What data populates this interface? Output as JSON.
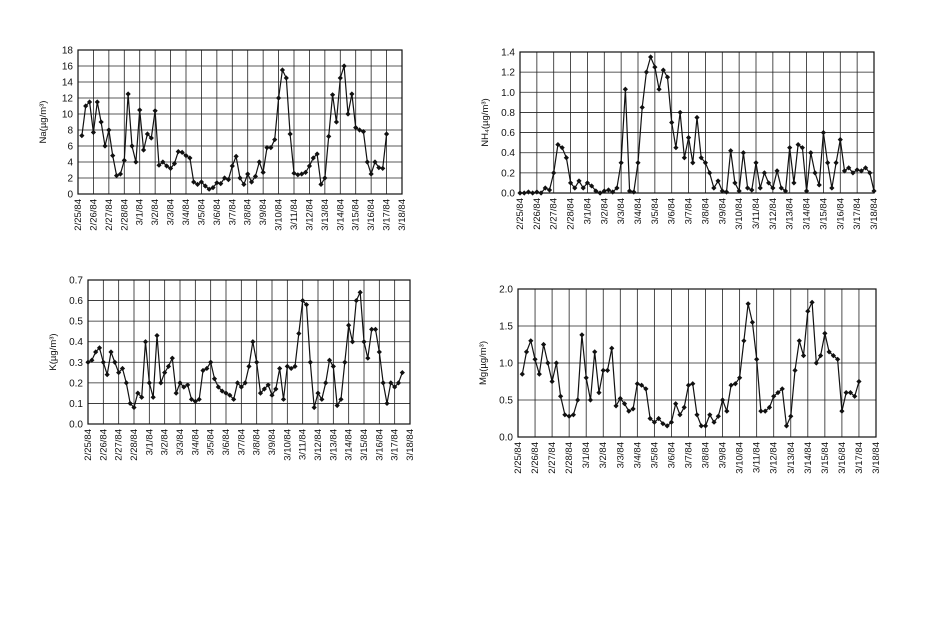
{
  "chart_data": [
    {
      "type": "line",
      "y_label": "Na(µg/m³)",
      "color": "#111111",
      "grid": true,
      "ylim": [
        0,
        18
      ],
      "yticks": [
        0,
        2,
        4,
        6,
        8,
        10,
        12,
        14,
        16,
        18
      ],
      "categories": [
        "2/25/84",
        null,
        null,
        null,
        "2/26/84",
        null,
        null,
        null,
        "2/27/84",
        null,
        null,
        null,
        "2/28/84",
        null,
        null,
        null,
        "3/1/84",
        null,
        null,
        null,
        "3/2/84",
        null,
        null,
        null,
        "3/3/84",
        null,
        null,
        null,
        "3/4/84",
        null,
        null,
        null,
        "3/5/84",
        null,
        null,
        null,
        "3/6/84",
        null,
        null,
        null,
        "3/7/84",
        null,
        null,
        null,
        "3/8/84",
        null,
        null,
        null,
        "3/9/84",
        null,
        null,
        null,
        "3/10/84",
        null,
        null,
        null,
        "3/11/84",
        null,
        null,
        null,
        "3/12/84",
        null,
        null,
        null,
        "3/13/84",
        null,
        null,
        null,
        "3/14/84",
        null,
        null,
        null,
        "3/15/84",
        null,
        null,
        null,
        "3/16/84",
        null,
        null,
        null,
        "3/17/84",
        null,
        null,
        null,
        "3/18/84"
      ],
      "values": [
        null,
        7.3,
        11,
        11.5,
        7.7,
        11.5,
        9,
        6,
        8,
        4.8,
        2.3,
        2.5,
        4.2,
        12.5,
        6,
        4,
        10.5,
        5.5,
        7.5,
        7,
        10.4,
        3.6,
        4,
        3.5,
        3.2,
        3.8,
        5.3,
        5.2,
        4.8,
        4.5,
        1.5,
        1.2,
        1.5,
        1,
        0.6,
        0.8,
        1.4,
        1.3,
        2,
        1.8,
        3.5,
        4.7,
        2,
        1.2,
        2.5,
        1.5,
        2.2,
        4,
        2.7,
        5.8,
        5.8,
        6.8,
        12,
        15.5,
        14.5,
        7.5,
        2.6,
        2.4,
        2.5,
        2.7,
        3.5,
        4.5,
        5,
        1.2,
        2,
        7.2,
        12.4,
        9,
        14.5,
        16,
        10,
        12.5,
        8.3,
        8,
        7.8,
        4,
        2.5,
        4,
        3.3,
        3.2,
        7.5,
        null,
        null,
        null,
        null
      ]
    },
    {
      "type": "line",
      "y_label": "NH₄(µg/m³)",
      "color": "#111111",
      "grid": true,
      "ylim": [
        0,
        1.4
      ],
      "yticks": [
        {
          "value": 0,
          "label": "0.0"
        },
        0.2,
        0.4,
        0.6,
        0.8,
        {
          "value": 1,
          "label": "1.0"
        },
        1.2,
        1.4
      ],
      "categories": [
        "2/25/84",
        null,
        null,
        null,
        "2/26/84",
        null,
        null,
        null,
        "2/27/84",
        null,
        null,
        null,
        "2/28/84",
        null,
        null,
        null,
        "3/1/84",
        null,
        null,
        null,
        "3/2/84",
        null,
        null,
        null,
        "3/3/84",
        null,
        null,
        null,
        "3/4/84",
        null,
        null,
        null,
        "3/5/84",
        null,
        null,
        null,
        "3/6/84",
        null,
        null,
        null,
        "3/7/84",
        null,
        null,
        null,
        "3/8/84",
        null,
        null,
        null,
        "3/9/84",
        null,
        null,
        null,
        "3/10/84",
        null,
        null,
        null,
        "3/11/84",
        null,
        null,
        null,
        "3/12/84",
        null,
        null,
        null,
        "3/13/84",
        null,
        null,
        null,
        "3/14/84",
        null,
        null,
        null,
        "3/15/84",
        null,
        null,
        null,
        "3/16/84",
        null,
        null,
        null,
        "3/17/84",
        null,
        null,
        null,
        "3/18/84"
      ],
      "values": [
        0,
        0,
        0.01,
        0,
        0.01,
        0,
        0.05,
        0.03,
        0.2,
        0.48,
        0.45,
        0.35,
        0.1,
        0.05,
        0.12,
        0.05,
        0.1,
        0.07,
        0.02,
        0,
        0.02,
        0.03,
        0.01,
        0.05,
        0.3,
        1.03,
        0.02,
        0.01,
        0.3,
        0.85,
        1.2,
        1.35,
        1.25,
        1.03,
        1.22,
        1.15,
        0.7,
        0.45,
        0.8,
        0.35,
        0.55,
        0.3,
        0.75,
        0.35,
        0.3,
        0.2,
        0.05,
        0.12,
        0.02,
        0.01,
        0.42,
        0.1,
        0.02,
        0.4,
        0.05,
        0.03,
        0.3,
        0.05,
        0.2,
        0.1,
        0.05,
        0.22,
        0.05,
        0.02,
        0.45,
        0.1,
        0.48,
        0.45,
        0.02,
        0.4,
        0.2,
        0.08,
        0.6,
        0.3,
        0.05,
        0.3,
        0.53,
        0.22,
        0.25,
        0.2,
        0.23,
        0.22,
        0.25,
        0.2,
        0.02
      ]
    },
    {
      "type": "line",
      "y_label": "K(µg/m³)",
      "color": "#111111",
      "grid": true,
      "ylim": [
        0,
        0.7
      ],
      "yticks": [
        {
          "value": 0,
          "label": "0.0"
        },
        0.1,
        0.2,
        0.3,
        0.4,
        0.5,
        0.6,
        0.7
      ],
      "categories": [
        "2/25/84",
        null,
        null,
        null,
        "2/26/84",
        null,
        null,
        null,
        "2/27/84",
        null,
        null,
        null,
        "2/28/84",
        null,
        null,
        null,
        "3/1/84",
        null,
        null,
        null,
        "3/2/84",
        null,
        null,
        null,
        "3/3/84",
        null,
        null,
        null,
        "3/4/84",
        null,
        null,
        null,
        "3/5/84",
        null,
        null,
        null,
        "3/6/84",
        null,
        null,
        null,
        "3/7/84",
        null,
        null,
        null,
        "3/8/84",
        null,
        null,
        null,
        "3/9/84",
        null,
        null,
        null,
        "3/10/84",
        null,
        null,
        null,
        "3/11/84",
        null,
        null,
        null,
        "3/12/84",
        null,
        null,
        null,
        "3/13/84",
        null,
        null,
        null,
        "3/14/84",
        null,
        null,
        null,
        "3/15/84",
        null,
        null,
        null,
        "3/16/84",
        null,
        null,
        null,
        "3/17/84",
        null,
        null,
        null,
        "3/18/84"
      ],
      "values": [
        0.3,
        0.31,
        0.35,
        0.37,
        0.3,
        0.24,
        0.35,
        0.3,
        0.25,
        0.27,
        0.2,
        0.1,
        0.08,
        0.15,
        0.13,
        0.4,
        0.2,
        0.13,
        0.43,
        0.2,
        0.25,
        0.28,
        0.32,
        0.15,
        0.2,
        0.18,
        0.19,
        0.12,
        0.11,
        0.12,
        0.26,
        0.27,
        0.3,
        0.22,
        0.18,
        0.16,
        0.15,
        0.14,
        0.12,
        0.2,
        0.18,
        0.2,
        0.28,
        0.4,
        0.3,
        0.15,
        0.17,
        0.19,
        0.14,
        0.17,
        0.27,
        0.12,
        0.28,
        0.27,
        0.28,
        0.44,
        0.6,
        0.58,
        0.3,
        0.08,
        0.15,
        0.12,
        0.2,
        0.31,
        0.28,
        0.09,
        0.12,
        0.3,
        0.48,
        0.4,
        0.6,
        0.64,
        0.4,
        0.32,
        0.46,
        0.46,
        0.35,
        0.2,
        0.1,
        0.2,
        0.18,
        0.2,
        0.25,
        null,
        null
      ]
    },
    {
      "type": "line",
      "y_label": "Mg(µg/m³)",
      "color": "#111111",
      "grid": true,
      "ylim": [
        0,
        2
      ],
      "yticks": [
        {
          "value": 0,
          "label": "0.0"
        },
        0.5,
        {
          "value": 1,
          "label": "1.0"
        },
        1.5,
        {
          "value": 2,
          "label": "2.0"
        }
      ],
      "categories": [
        "2/25/84",
        null,
        null,
        null,
        "2/26/84",
        null,
        null,
        null,
        "2/27/84",
        null,
        null,
        null,
        "2/28/84",
        null,
        null,
        null,
        "3/1/84",
        null,
        null,
        null,
        "3/2/84",
        null,
        null,
        null,
        "3/3/84",
        null,
        null,
        null,
        "3/4/84",
        null,
        null,
        null,
        "3/5/84",
        null,
        null,
        null,
        "3/6/84",
        null,
        null,
        null,
        "3/7/84",
        null,
        null,
        null,
        "3/8/84",
        null,
        null,
        null,
        "3/9/84",
        null,
        null,
        null,
        "3/10/84",
        null,
        null,
        null,
        "3/11/84",
        null,
        null,
        null,
        "3/12/84",
        null,
        null,
        null,
        "3/13/84",
        null,
        null,
        null,
        "3/14/84",
        null,
        null,
        null,
        "3/15/84",
        null,
        null,
        null,
        "3/16/84",
        null,
        null,
        null,
        "3/17/84",
        null,
        null,
        null,
        "3/18/84"
      ],
      "values": [
        null,
        0.85,
        1.15,
        1.3,
        1.05,
        0.85,
        1.25,
        1.0,
        0.75,
        1.0,
        0.55,
        0.3,
        0.28,
        0.3,
        0.5,
        1.38,
        0.8,
        0.5,
        1.15,
        0.6,
        0.9,
        0.9,
        1.2,
        0.42,
        0.52,
        0.45,
        0.35,
        0.38,
        0.72,
        0.7,
        0.65,
        0.25,
        0.2,
        0.25,
        0.18,
        0.15,
        0.2,
        0.45,
        0.3,
        0.4,
        0.7,
        0.72,
        0.3,
        0.15,
        0.15,
        0.3,
        0.2,
        0.28,
        0.5,
        0.35,
        0.7,
        0.72,
        0.8,
        1.3,
        1.8,
        1.55,
        1.05,
        0.35,
        0.35,
        0.4,
        0.55,
        0.6,
        0.65,
        0.15,
        0.28,
        0.9,
        1.3,
        1.1,
        1.7,
        1.82,
        1.0,
        1.1,
        1.4,
        1.15,
        1.1,
        1.05,
        0.35,
        0.6,
        0.6,
        0.55,
        0.75,
        null,
        null,
        null,
        null
      ]
    }
  ]
}
